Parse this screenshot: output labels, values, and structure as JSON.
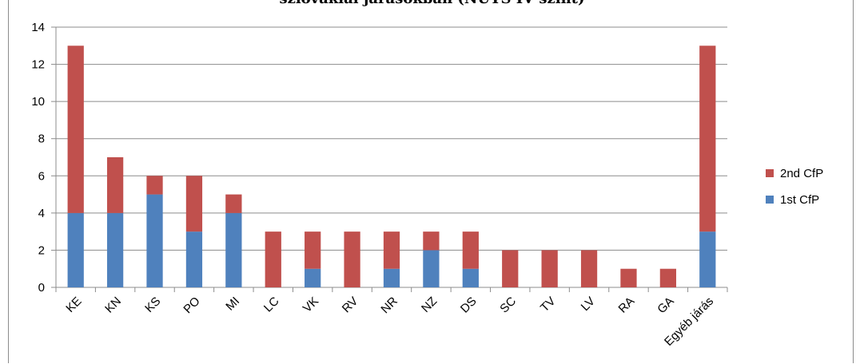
{
  "cut_title": "szlovákiai járásokban (NUTS IV szint)",
  "chart_data": {
    "type": "bar",
    "stacked": true,
    "title": "szlovákiai járásokban (NUTS IV szint)",
    "categories": [
      "KE",
      "KN",
      "KS",
      "PO",
      "MI",
      "LC",
      "VK",
      "RV",
      "NR",
      "NZ",
      "DS",
      "SC",
      "TV",
      "LV",
      "RA",
      "GA",
      "Egyéb járás"
    ],
    "series": [
      {
        "name": "1st CfP",
        "color": "#4f81bd",
        "values": [
          4,
          4,
          5,
          3,
          4,
          0,
          1,
          0,
          1,
          2,
          1,
          0,
          0,
          0,
          0,
          0,
          3
        ]
      },
      {
        "name": "2nd CfP",
        "color": "#c0504d",
        "values": [
          9,
          3,
          1,
          3,
          1,
          3,
          2,
          3,
          2,
          1,
          2,
          2,
          2,
          2,
          1,
          1,
          10
        ]
      }
    ],
    "ylim": [
      0,
      14
    ],
    "yticks": [
      0,
      2,
      4,
      6,
      8,
      10,
      12,
      14
    ],
    "grid": true,
    "legend": {
      "position": "right",
      "order": [
        "2nd CfP",
        "1st CfP"
      ]
    }
  }
}
